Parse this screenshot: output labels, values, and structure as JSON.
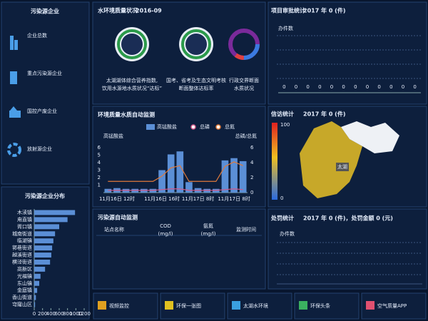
{
  "enterprise_panel": {
    "title": "污染源企业",
    "items": [
      "企业总数",
      "重点污染源企业",
      "国控产废企业",
      "放射源企业"
    ]
  },
  "water_quality": {
    "title": "水环境质量状况",
    "date": "2016-09",
    "gauges": [
      [
        "太湖湖体综合营养指数,",
        "饮用水源地水质状况“达标”"
      ],
      [
        "国考、省考及生态文明考核",
        "断面整体达标率"
      ],
      [
        "行政交界断面",
        "水质状况"
      ]
    ]
  },
  "table": {
    "title": "污染源自动监测",
    "headers": [
      [
        "站点名称"
      ],
      [
        "COD",
        "(mg/l)"
      ],
      [
        "氨氮",
        "(mg/l)"
      ],
      [
        "监测时间"
      ]
    ]
  },
  "petition": {
    "title": "信访统计",
    "summary": "2017 年 0 (件)",
    "scale_max": 100,
    "scale_min": 0,
    "map_label": "太湖"
  },
  "penalty": {
    "title": "处罚统计",
    "summary": "2017 年 0 (件)，处罚金额 0 (元)",
    "y_label": "办件数"
  },
  "nav": [
    "视频监控",
    "环保一张图",
    "太湖水环境",
    "环保头条",
    "空气质量APP"
  ],
  "chart_data": [
    {
      "type": "hbar",
      "title": "污染源企业分布",
      "categories": [
        "木渎镇",
        "甪直镇",
        "胥口镇",
        "城南街道",
        "临湖镇",
        "郭巷街道",
        "越溪街道",
        "横泾街道",
        "高新区",
        "光福镇",
        "东山镇",
        "金庭镇",
        "香山街道",
        "穹窿山区"
      ],
      "values": [
        980,
        800,
        600,
        500,
        460,
        430,
        410,
        380,
        260,
        150,
        120,
        70,
        40,
        20
      ],
      "color": "#5b8fd6",
      "xlim": [
        0,
        1200
      ],
      "xticks": [
        0,
        200,
        400,
        600,
        800,
        1000,
        1200
      ]
    },
    {
      "type": "combo",
      "title": "环境质量水质自动监测",
      "categories": [
        null,
        "11月16日 12时",
        null,
        null,
        null,
        null,
        "11月16日 16时",
        null,
        null,
        null,
        "11月17日 8时",
        null,
        null,
        null,
        "11月17日 8时",
        null
      ],
      "series": [
        {
          "name": "高锰酸盐",
          "type": "bar",
          "color": "#5b8fd6",
          "values": [
            0.5,
            0.6,
            0.5,
            0.5,
            0.5,
            0.5,
            3,
            5.1,
            5.5,
            1.4,
            0.6,
            0.5,
            0.5,
            4.3,
            4.6,
            4.2
          ]
        },
        {
          "name": "总磷",
          "type": "line",
          "color": "#d05a8a",
          "axis": "y2",
          "values": [
            0.3,
            0.3,
            0.3,
            0.3,
            0.3,
            0.3,
            0.4,
            0.5,
            0.5,
            0.3,
            0.3,
            0.3,
            0.3,
            0.4,
            0.5,
            0.4
          ]
        },
        {
          "name": "总氮",
          "type": "line",
          "color": "#e07a3a",
          "axis": "y2",
          "values": [
            1.5,
            1.5,
            1.5,
            1.5,
            1.5,
            1.5,
            2.2,
            3.3,
            3.6,
            1.5,
            1.5,
            1.5,
            1.5,
            3.5,
            4.1,
            3.6
          ]
        }
      ],
      "y_label": "高锰酸盐",
      "y2_label": "总磷/总氮",
      "ylim": [
        0,
        6
      ],
      "yticks": [
        1,
        2,
        3,
        4,
        5,
        6
      ],
      "y2lim": [
        0,
        6
      ],
      "y2ticks": [
        0,
        2,
        4,
        6
      ]
    },
    {
      "type": "bar",
      "title": "项目审批统计",
      "subtitle": "2017 年 0 (件)",
      "y_label": "办件数",
      "values": [
        0,
        0,
        0,
        0,
        0,
        0,
        0,
        0,
        0,
        0,
        0,
        0
      ],
      "color": "#5b8fd6",
      "ylim": [
        0,
        10
      ]
    }
  ]
}
